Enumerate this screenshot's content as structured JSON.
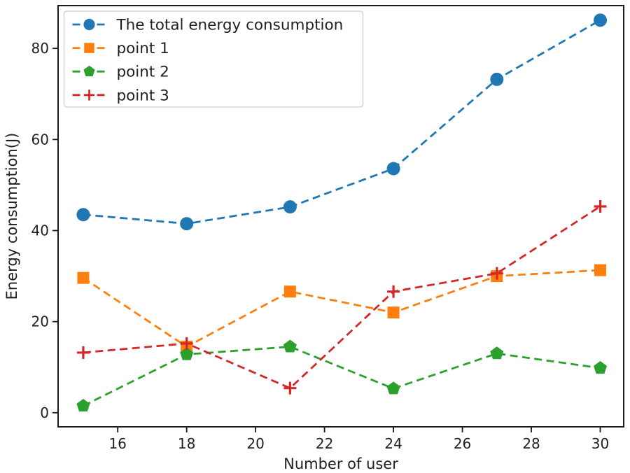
{
  "chart_data": {
    "type": "line",
    "title": "",
    "xlabel": "Number of user",
    "ylabel": "Energy consumption(J)",
    "x": [
      15,
      18,
      21,
      24,
      27,
      30
    ],
    "series": [
      {
        "name": "The total energy consumption",
        "color": "#1f77b4",
        "marker": "circle",
        "linestyle": "dashed",
        "values": [
          43.5,
          41.5,
          45.2,
          53.6,
          73.2,
          86.2
        ]
      },
      {
        "name": "point 1",
        "color": "#ff7f0e",
        "marker": "square",
        "linestyle": "dashed",
        "values": [
          29.6,
          14.5,
          26.6,
          22.0,
          30.0,
          31.3
        ]
      },
      {
        "name": "point 2",
        "color": "#2ca02c",
        "marker": "pentagon",
        "linestyle": "dashed",
        "values": [
          1.5,
          12.8,
          14.5,
          5.3,
          13.0,
          9.8
        ]
      },
      {
        "name": "point 3",
        "color": "#d62728",
        "marker": "plus",
        "linestyle": "dashed",
        "values": [
          13.2,
          15.2,
          5.4,
          26.6,
          30.6,
          45.3
        ]
      }
    ],
    "xticks": [
      16,
      18,
      20,
      22,
      24,
      26,
      28,
      30
    ],
    "yticks": [
      0,
      20,
      40,
      60,
      80
    ],
    "xlim": [
      14.27,
      30.68
    ],
    "ylim": [
      -3.1,
      89.4
    ],
    "grid": false,
    "legend_position": "upper-left",
    "axis_color": "#1a1a1a",
    "text_color": "#1f1f1f",
    "legend_border_color": "#cccccc"
  }
}
